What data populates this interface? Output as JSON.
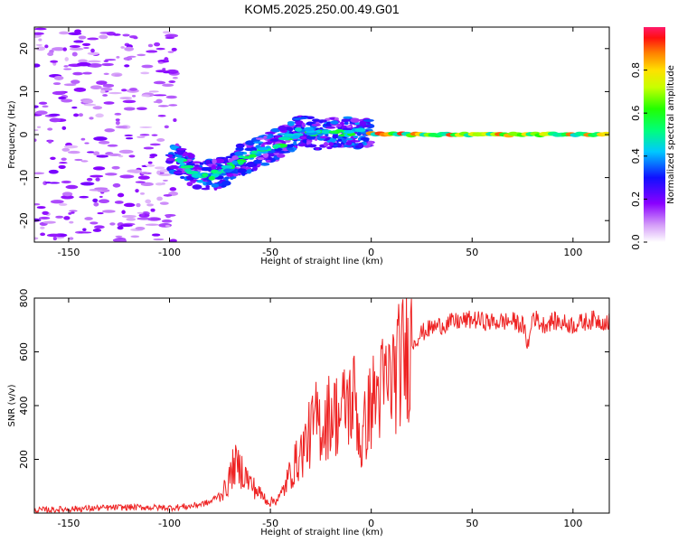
{
  "title": "KOM5.2025.250.00.49.G01",
  "chart_data": [
    {
      "type": "heatmap",
      "xlabel": "Height of straight line (km)",
      "ylabel": "Frequency (Hz)",
      "xlim": [
        -167,
        118
      ],
      "ylim": [
        -25,
        25
      ],
      "xticks": [
        -150,
        -100,
        -50,
        0,
        50,
        100
      ],
      "yticks": [
        -20,
        -10,
        0,
        10,
        20
      ],
      "colorbar": {
        "label": "Normalized spectral amplitude",
        "range": [
          0,
          1
        ],
        "ticks": [
          "0.0",
          "0.2",
          "0.4",
          "0.6",
          "0.8"
        ],
        "tick_values": [
          0,
          0.2,
          0.4,
          0.6,
          0.8
        ]
      },
      "ridge": [
        {
          "x": -95,
          "y": -6
        },
        {
          "x": -85,
          "y": -10
        },
        {
          "x": -75,
          "y": -9
        },
        {
          "x": -65,
          "y": -6
        },
        {
          "x": -55,
          "y": -4
        },
        {
          "x": -45,
          "y": -2
        },
        {
          "x": -35,
          "y": 1
        },
        {
          "x": -25,
          "y": 0
        },
        {
          "x": -15,
          "y": 0.5
        },
        {
          "x": 0,
          "y": 0.3
        },
        {
          "x": 20,
          "y": 0
        },
        {
          "x": 60,
          "y": 0
        },
        {
          "x": 118,
          "y": 0
        }
      ]
    },
    {
      "type": "line",
      "xlabel": "Height of straight line (km)",
      "ylabel": "SNR (v/v)",
      "xlim": [
        -167,
        118
      ],
      "ylim": [
        0,
        800
      ],
      "xticks": [
        -150,
        -100,
        -50,
        0,
        50,
        100
      ],
      "yticks": [
        200,
        400,
        600,
        800
      ],
      "color": "#ee2222",
      "series": [
        {
          "name": "SNR",
          "x": [
            -167,
            -150,
            -120,
            -100,
            -90,
            -80,
            -72,
            -68,
            -64,
            -60,
            -55,
            -50,
            -45,
            -40,
            -35,
            -30,
            -27,
            -24,
            -20,
            -15,
            -12,
            -10,
            -8,
            -5,
            -3,
            0,
            5,
            10,
            15,
            20,
            25,
            30,
            40,
            50,
            60,
            70,
            75,
            78,
            80,
            82,
            85,
            90,
            100,
            110,
            118
          ],
          "y": [
            10,
            15,
            22,
            20,
            25,
            40,
            90,
            180,
            160,
            110,
            70,
            40,
            60,
            150,
            220,
            300,
            350,
            320,
            380,
            360,
            420,
            400,
            440,
            230,
            330,
            410,
            460,
            500,
            560,
            630,
            670,
            690,
            710,
            720,
            710,
            715,
            700,
            620,
            740,
            720,
            700,
            715,
            700,
            720,
            710
          ]
        }
      ]
    }
  ]
}
